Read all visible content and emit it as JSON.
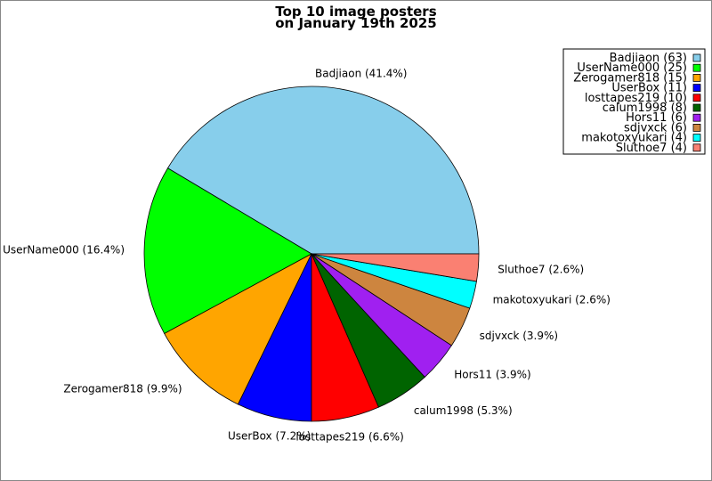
{
  "chart_data": {
    "type": "pie",
    "title": [
      "Top 10 image posters",
      "on January 19th 2025"
    ],
    "start_angle_deg": 0,
    "direction": "counterclockwise",
    "legend_placement": "top-right",
    "slices": [
      {
        "name": "Badjiaon",
        "value": 63,
        "percent": "41.4%",
        "color": "#87CEEB"
      },
      {
        "name": "UserName000",
        "value": 25,
        "percent": "16.4%",
        "color": "#00FF00"
      },
      {
        "name": "Zerogamer818",
        "value": 15,
        "percent": "9.9%",
        "color": "#FFA500"
      },
      {
        "name": "UserBox",
        "value": 11,
        "percent": "7.2%",
        "color": "#0000FF"
      },
      {
        "name": "losttapes219",
        "value": 10,
        "percent": "6.6%",
        "color": "#FF0000"
      },
      {
        "name": "calum1998",
        "value": 8,
        "percent": "5.3%",
        "color": "#006400"
      },
      {
        "name": "Hors11",
        "value": 6,
        "percent": "3.9%",
        "color": "#A020F0"
      },
      {
        "name": "sdjvxck",
        "value": 6,
        "percent": "3.9%",
        "color": "#CD853F"
      },
      {
        "name": "makotoxyukari",
        "value": 4,
        "percent": "2.6%",
        "color": "#00FFFF"
      },
      {
        "name": "Sluthoe7",
        "value": 4,
        "percent": "2.6%",
        "color": "#FA8072"
      }
    ]
  }
}
